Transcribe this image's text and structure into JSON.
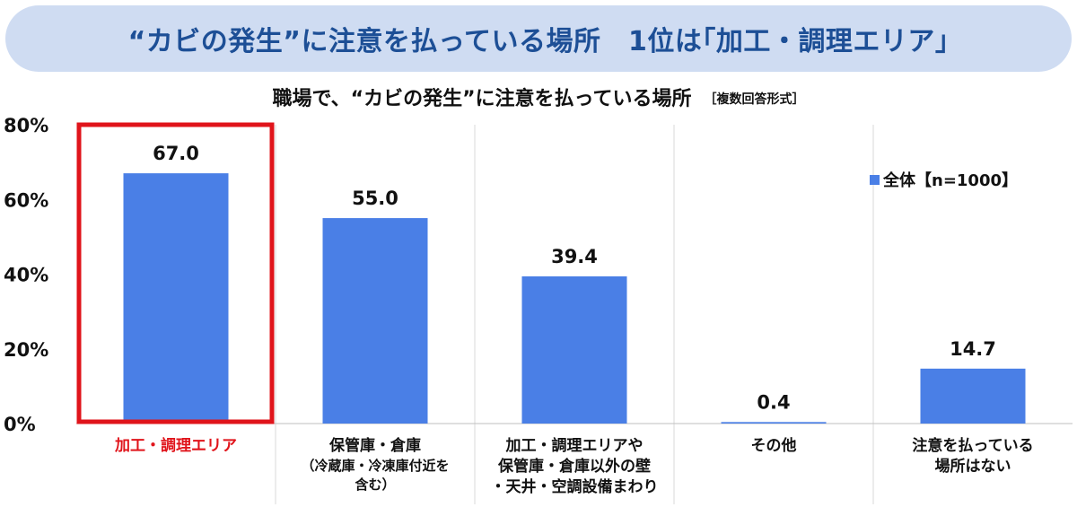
{
  "banner": {
    "title": "“カビの発生”に注意を払っている場所　1位は｢加工・調理エリア｣"
  },
  "subtitle": {
    "text": "職場で、“カビの発生”に注意を払っている場所",
    "note": "［複数回答形式］"
  },
  "legend": {
    "label": "全体【n=1000】"
  },
  "colors": {
    "bar": "#4a7fe6",
    "highlight": "#e0141b",
    "banner_bg": "#cfdcf2",
    "banner_text": "#1d4f96"
  },
  "chart_data": {
    "type": "bar",
    "title": "職場で、“カビの発生”に注意を払っている場所",
    "categories": [
      {
        "lines": [
          "加工・調理エリア"
        ],
        "sub": []
      },
      {
        "lines": [
          "保管庫・倉庫"
        ],
        "sub": [
          "（冷蔵庫・冷凍庫付近を",
          "含む）"
        ]
      },
      {
        "lines": [
          "加工・調理エリアや",
          "保管庫・倉庫以外の壁",
          "・天井・空調設備まわり"
        ],
        "sub": []
      },
      {
        "lines": [
          "その他"
        ],
        "sub": []
      },
      {
        "lines": [
          "注意を払っている",
          "場所はない"
        ],
        "sub": []
      }
    ],
    "series": [
      {
        "name": "全体【n=1000】",
        "values": [
          67.0,
          55.0,
          39.4,
          0.4,
          14.7
        ]
      }
    ],
    "value_labels": [
      "67.0",
      "55.0",
      "39.4",
      "0.4",
      "14.7"
    ],
    "yticks": [
      "0%",
      "20%",
      "40%",
      "60%",
      "80%"
    ],
    "ylim": [
      0,
      80
    ],
    "highlight_index": 0,
    "legend_position": "top-right",
    "grid": "vertical category separators"
  }
}
